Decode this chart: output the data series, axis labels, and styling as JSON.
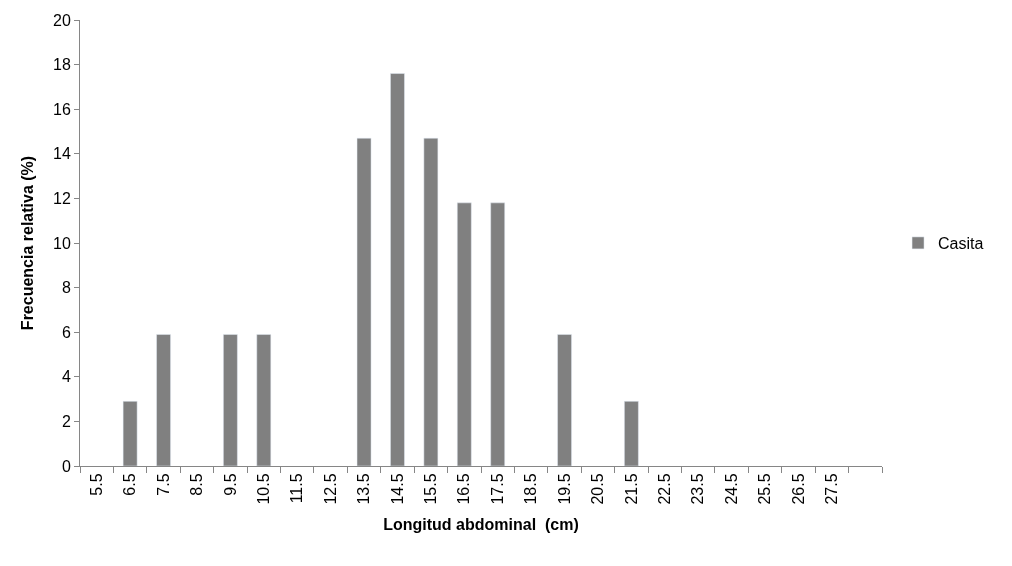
{
  "chart_data": {
    "type": "bar",
    "xlabel": "Longitud abdominal  (cm)",
    "ylabel": "Frecuencia relativa (%)",
    "categories": [
      "5.5",
      "6.5",
      "7.5",
      "8.5",
      "9.5",
      "10.5",
      "11.5",
      "12.5",
      "13.5",
      "14.5",
      "15.5",
      "16.5",
      "17.5",
      "18.5",
      "19.5",
      "20.5",
      "21.5",
      "22.5",
      "23.5",
      "24.5",
      "25.5",
      "26.5",
      "27.5",
      null
    ],
    "series": [
      {
        "name": "Casita",
        "color": "#808080",
        "values": [
          null,
          2.9,
          5.9,
          null,
          5.9,
          5.9,
          null,
          null,
          14.7,
          17.6,
          14.7,
          11.8,
          11.8,
          null,
          5.9,
          null,
          2.9,
          null,
          null,
          null,
          null,
          null,
          null,
          null
        ]
      }
    ],
    "ylim": [
      0,
      20
    ],
    "yticks": [
      0,
      2,
      4,
      6,
      8,
      10,
      12,
      14,
      16,
      18,
      20
    ],
    "grid": false,
    "legend": "right"
  }
}
